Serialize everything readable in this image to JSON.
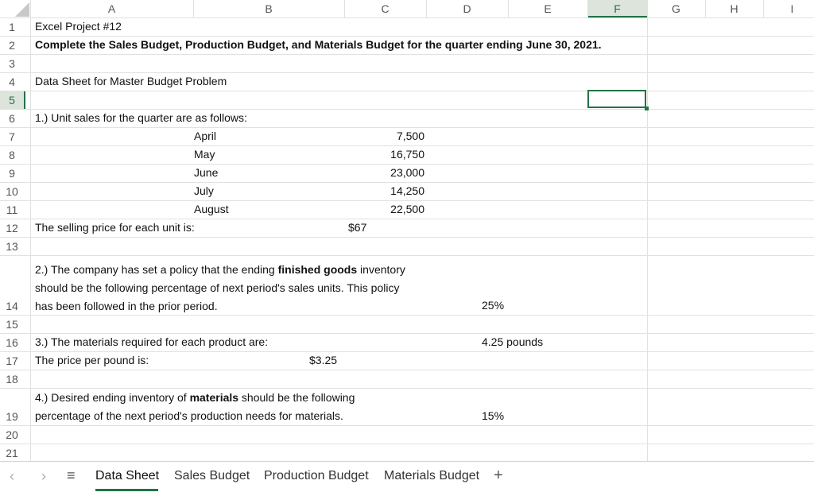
{
  "columns": [
    "A",
    "B",
    "C",
    "D",
    "E",
    "F",
    "G",
    "H",
    "I"
  ],
  "rows": [
    "1",
    "2",
    "3",
    "4",
    "5",
    "6",
    "7",
    "8",
    "9",
    "10",
    "11",
    "12",
    "13",
    "14",
    "15",
    "16",
    "17",
    "18",
    "19",
    "20",
    "21"
  ],
  "selected_cell": "F5",
  "cells": {
    "a1": "Excel Project #12",
    "a2": "Complete the Sales Budget, Production Budget, and Materials Budget for the quarter ending June 30, 2021.",
    "a4": "Data Sheet for Master Budget Problem",
    "a6": "1.) Unit sales for the quarter are as follows:",
    "months": [
      {
        "label": "April",
        "value": "7,500"
      },
      {
        "label": "May",
        "value": "16,750"
      },
      {
        "label": "June",
        "value": "23,000"
      },
      {
        "label": "July",
        "value": "14,250"
      },
      {
        "label": "August",
        "value": "22,500"
      }
    ],
    "a12": "The selling price for each unit is:",
    "c12": "$67",
    "a14_pre": "2.) The company has set a policy that the ending ",
    "a14_bold": "finished goods",
    "a14_post": " inventory should be the following percentage of next period's sales units. This policy has been followed in the prior period.",
    "d14": "25%",
    "a16": "3.) The materials required for each product are:",
    "d16": "4.25 pounds",
    "a17": "The price per pound is:",
    "b17": "$3.25",
    "a19_pre": "4.) Desired ending inventory of ",
    "a19_bold": "materials",
    "a19_post": " should be the following percentage of the next period's production needs for materials.",
    "d19": "15%"
  },
  "tabs": [
    {
      "label": "Data Sheet",
      "active": true
    },
    {
      "label": "Sales Budget",
      "active": false
    },
    {
      "label": "Production Budget",
      "active": false
    },
    {
      "label": "Materials Budget",
      "active": false
    }
  ],
  "add_sheet": "+",
  "icons": {
    "prev": "chevron-left-icon",
    "next": "chevron-right-icon",
    "menu": "hamburger-menu-icon"
  },
  "accent_color": "#217346"
}
